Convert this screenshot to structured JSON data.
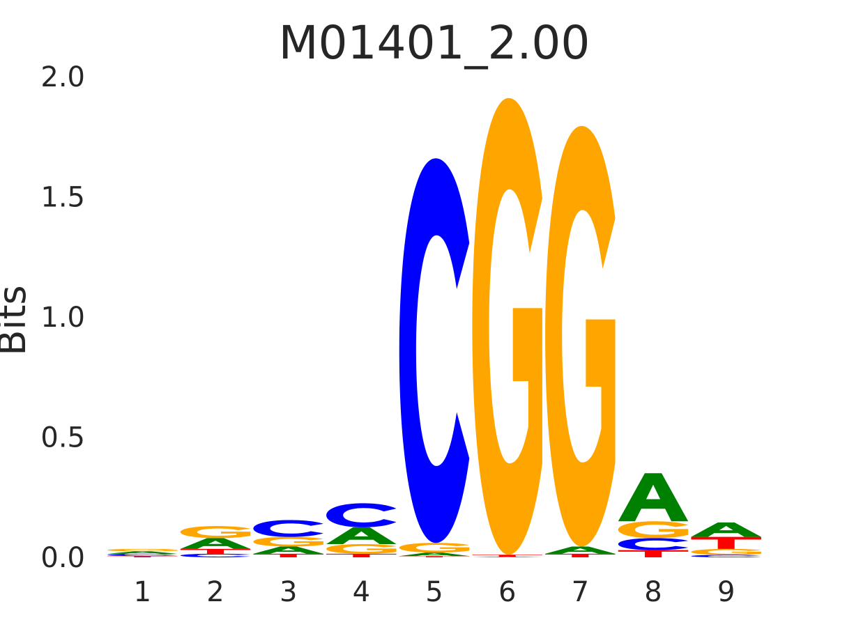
{
  "chart_data": {
    "type": "sequence-logo",
    "title": "M01401_2.00",
    "ylabel": "Bits",
    "xlabel": "",
    "ylim": [
      0,
      2.0
    ],
    "yticks": [
      "0.0",
      "0.5",
      "1.0",
      "1.5",
      "2.0"
    ],
    "categories": [
      "1",
      "2",
      "3",
      "4",
      "5",
      "6",
      "7",
      "8",
      "9"
    ],
    "grid": false,
    "colors": {
      "A": "#008000",
      "C": "#0000ff",
      "G": "#ffa500",
      "T": "#ff0000"
    },
    "positions": [
      {
        "position": "1",
        "letters": [
          {
            "base": "T",
            "bits": 0.005
          },
          {
            "base": "C",
            "bits": 0.01
          },
          {
            "base": "A",
            "bits": 0.01
          },
          {
            "base": "G",
            "bits": 0.01
          }
        ]
      },
      {
        "position": "2",
        "letters": [
          {
            "base": "C",
            "bits": 0.015
          },
          {
            "base": "T",
            "bits": 0.02
          },
          {
            "base": "A",
            "bits": 0.045
          },
          {
            "base": "G",
            "bits": 0.05
          }
        ]
      },
      {
        "position": "3",
        "letters": [
          {
            "base": "T",
            "bits": 0.015
          },
          {
            "base": "A",
            "bits": 0.03
          },
          {
            "base": "G",
            "bits": 0.04
          },
          {
            "base": "C",
            "bits": 0.07
          }
        ]
      },
      {
        "position": "4",
        "letters": [
          {
            "base": "T",
            "bits": 0.015
          },
          {
            "base": "G",
            "bits": 0.04
          },
          {
            "base": "A",
            "bits": 0.07
          },
          {
            "base": "C",
            "bits": 0.1
          }
        ]
      },
      {
        "position": "5",
        "letters": [
          {
            "base": "T",
            "bits": 0.005
          },
          {
            "base": "A",
            "bits": 0.015
          },
          {
            "base": "G",
            "bits": 0.04
          },
          {
            "base": "C",
            "bits": 1.6
          }
        ]
      },
      {
        "position": "6",
        "letters": [
          {
            "base": "A",
            "bits": 0.003
          },
          {
            "base": "T",
            "bits": 0.008
          },
          {
            "base": "G",
            "bits": 1.9
          }
        ]
      },
      {
        "position": "7",
        "letters": [
          {
            "base": "T",
            "bits": 0.015
          },
          {
            "base": "A",
            "bits": 0.03
          },
          {
            "base": "G",
            "bits": 1.75
          }
        ]
      },
      {
        "position": "8",
        "letters": [
          {
            "base": "T",
            "bits": 0.03
          },
          {
            "base": "C",
            "bits": 0.05
          },
          {
            "base": "G",
            "bits": 0.07
          },
          {
            "base": "A",
            "bits": 0.2
          }
        ]
      },
      {
        "position": "9",
        "letters": [
          {
            "base": "C",
            "bits": 0.01
          },
          {
            "base": "G",
            "bits": 0.025
          },
          {
            "base": "T",
            "bits": 0.05
          },
          {
            "base": "A",
            "bits": 0.06
          }
        ]
      }
    ]
  }
}
